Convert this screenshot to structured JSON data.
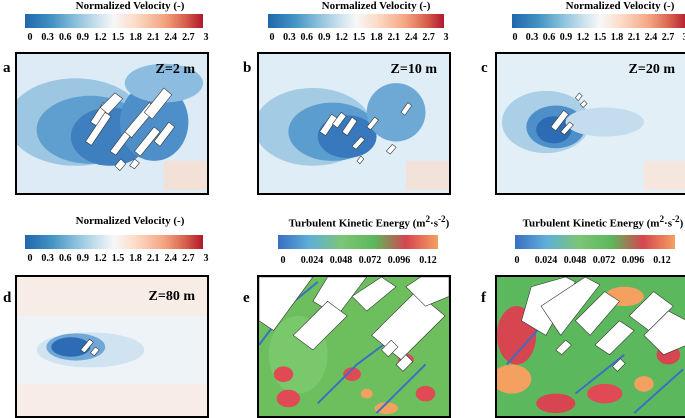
{
  "colorbars": {
    "velocity": {
      "title": "Normalized Velocity (-)",
      "ticks": [
        "0",
        "0.3",
        "0.6",
        "0.9",
        "1.2",
        "1.5",
        "1.8",
        "2.1",
        "2.4",
        "2.7",
        "3"
      ]
    },
    "tke": {
      "title_main": "Turbulent Kinetic Energy (m",
      "title_sup1": "2",
      "title_mid": "·s",
      "title_sup2": "-2",
      "title_end": ")",
      "ticks": [
        "0",
        "0.024",
        "0.048",
        "0.072",
        "0.096",
        "0.12"
      ]
    }
  },
  "panels": [
    {
      "id": "a",
      "letter": "a",
      "zlabel": "Z=2 m"
    },
    {
      "id": "b",
      "letter": "b",
      "zlabel": "Z=10 m"
    },
    {
      "id": "c",
      "letter": "c",
      "zlabel": "Z=20 m"
    },
    {
      "id": "d",
      "letter": "d",
      "zlabel": "Z=80 m"
    },
    {
      "id": "e",
      "letter": "e",
      "zlabel": ""
    },
    {
      "id": "f",
      "letter": "f",
      "zlabel": ""
    }
  ],
  "colors": {
    "velocity_gradient": [
      "#2166ac",
      "#4393c3",
      "#92c5de",
      "#d1e5f0",
      "#f7f7f7",
      "#fddbc7",
      "#f4a582",
      "#d6604d",
      "#b2182b"
    ],
    "tke_gradient": [
      "#3a6fc4",
      "#5fb0d8",
      "#7cc576",
      "#5cb85c",
      "#d64550",
      "#f4a060"
    ]
  }
}
